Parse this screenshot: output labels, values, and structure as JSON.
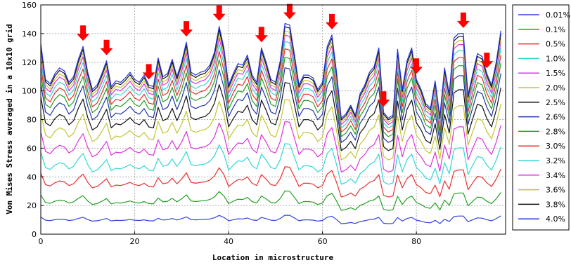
{
  "chart_data": {
    "type": "line",
    "title": "",
    "xlabel": "Location in microstructure",
    "ylabel": "Von Mises Stress averaged in a 10x10 grid",
    "xlim": [
      0,
      99
    ],
    "ylim": [
      0,
      160
    ],
    "xticks": [
      "0",
      "20",
      "40",
      "60",
      "80"
    ],
    "yticks": [
      "0",
      "20",
      "40",
      "60",
      "80",
      "100",
      "120",
      "140",
      "160"
    ],
    "grid": true,
    "legend_position": "right-outside",
    "base_profile": [
      133,
      108,
      105,
      112,
      116,
      114,
      106,
      110,
      122,
      131,
      113,
      101,
      104,
      112,
      121,
      103,
      107,
      106,
      109,
      113,
      108,
      106,
      111,
      104,
      103,
      123,
      110,
      112,
      122,
      110,
      120,
      134,
      113,
      111,
      113,
      114,
      118,
      127,
      145,
      130,
      104,
      112,
      119,
      118,
      125,
      111,
      106,
      130,
      120,
      108,
      106,
      121,
      147,
      146,
      126,
      104,
      111,
      111,
      109,
      101,
      106,
      131,
      139,
      113,
      81,
      84,
      90,
      83,
      98,
      104,
      113,
      117,
      130,
      85,
      81,
      83,
      129,
      101,
      121,
      130,
      108,
      101,
      91,
      88,
      107,
      82,
      116,
      98,
      137,
      140,
      140,
      97,
      112,
      126,
      124,
      112,
      104,
      120,
      142
    ],
    "annotations": {
      "marker": "arrow-down",
      "color": "#ff0000",
      "x": [
        9,
        14,
        23,
        31,
        38,
        47,
        53,
        62,
        73,
        80,
        90,
        95
      ]
    },
    "series": [
      {
        "name": "0.01%",
        "color": "#3344dd",
        "scale": 0.09
      },
      {
        "name": "0.1%",
        "color": "#22a022",
        "scale": 0.205
      },
      {
        "name": "0.5%",
        "color": "#e83030",
        "scale": 0.32
      },
      {
        "name": "1.0%",
        "color": "#33d6d6",
        "scale": 0.43
      },
      {
        "name": "1.5%",
        "color": "#dd33dd",
        "scale": 0.535
      },
      {
        "name": "2.0%",
        "color": "#c4c433",
        "scale": 0.64
      },
      {
        "name": "2.5%",
        "color": "#111111",
        "scale": 0.72
      },
      {
        "name": "2.6%",
        "color": "#2233aa",
        "scale": 0.79
      },
      {
        "name": "2.8%",
        "color": "#22a022",
        "scale": 0.84
      },
      {
        "name": "3.0%",
        "color": "#e83030",
        "scale": 0.88
      },
      {
        "name": "3.2%",
        "color": "#33d6d6",
        "scale": 0.915
      },
      {
        "name": "3.4%",
        "color": "#dd33dd",
        "scale": 0.945
      },
      {
        "name": "3.6%",
        "color": "#c4c433",
        "scale": 0.965
      },
      {
        "name": "3.8%",
        "color": "#111111",
        "scale": 0.985
      },
      {
        "name": "4.0%",
        "color": "#2233dd",
        "scale": 1.0
      }
    ]
  }
}
